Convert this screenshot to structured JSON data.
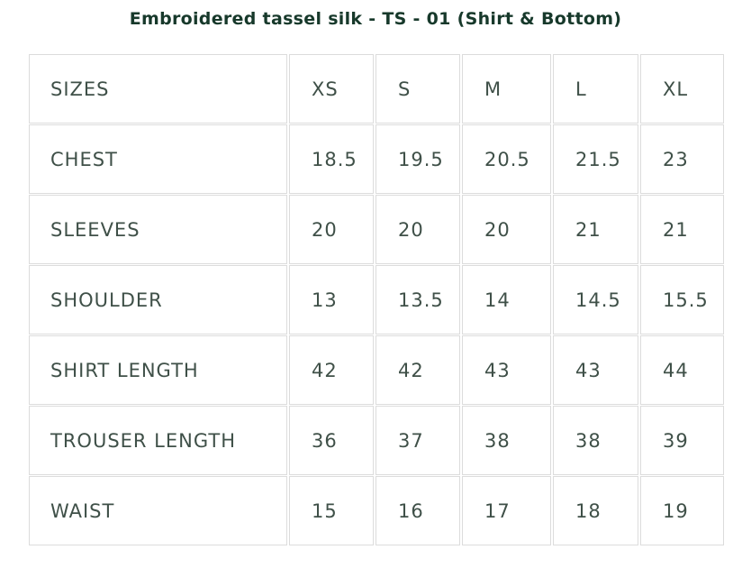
{
  "title": "Embroidered tassel silk - TS - 01 (Shirt & Bottom)",
  "table": {
    "header": [
      "SIZES",
      "XS",
      "S",
      "M",
      "L",
      "XL"
    ],
    "rows": [
      [
        "CHEST",
        "18.5",
        "19.5",
        "20.5",
        "21.5",
        "23"
      ],
      [
        "SLEEVES",
        "20",
        "20",
        "20",
        "21",
        "21"
      ],
      [
        "SHOULDER",
        "13",
        "13.5",
        "14",
        "14.5",
        "15.5"
      ],
      [
        "SHIRT LENGTH",
        "42",
        "42",
        "43",
        "43",
        "44"
      ],
      [
        "TROUSER LENGTH",
        "36",
        "37",
        "38",
        "38",
        "39"
      ],
      [
        "WAIST",
        "15",
        "16",
        "17",
        "18",
        "19"
      ]
    ]
  }
}
